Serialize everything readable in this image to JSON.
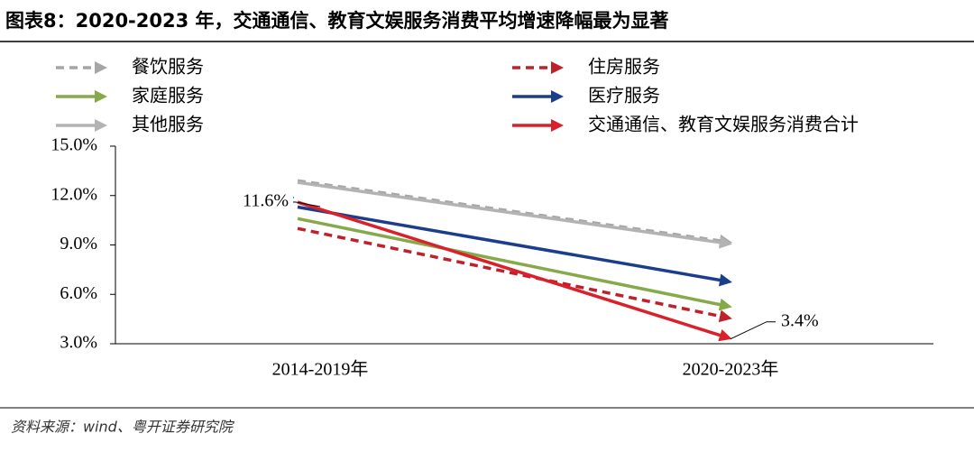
{
  "header": {
    "title": "图表8：2020-2023 年，交通通信、教育文娱服务消费平均增速降幅最为显著"
  },
  "source": "资料来源：wind、粤开证券研究院",
  "chart_data": {
    "type": "line",
    "categories": [
      "2014-2019年",
      "2020-2023年"
    ],
    "ylim": [
      3,
      15
    ],
    "yticks": [
      {
        "value": 3,
        "label": "3.0%"
      },
      {
        "value": 6,
        "label": "6.0%"
      },
      {
        "value": 9,
        "label": "9.0%"
      },
      {
        "value": 12,
        "label": "12.0%"
      },
      {
        "value": 15,
        "label": "15.0%"
      }
    ],
    "series": [
      {
        "name": "餐饮服务",
        "color": "#a6a6a6",
        "dashed": true,
        "values": [
          12.9,
          9.2
        ]
      },
      {
        "name": "住房服务",
        "color": "#c0202a",
        "dashed": true,
        "values": [
          10.0,
          4.6
        ]
      },
      {
        "name": "家庭服务",
        "color": "#86a94a",
        "dashed": false,
        "values": [
          10.6,
          5.3
        ]
      },
      {
        "name": "医疗服务",
        "color": "#1b3e8c",
        "dashed": false,
        "values": [
          11.3,
          6.8
        ]
      },
      {
        "name": "其他服务",
        "color": "#b3b3b3",
        "dashed": false,
        "values": [
          12.8,
          9.1
        ]
      },
      {
        "name": "交通通信、教育文娱服务消费合计",
        "color": "#d9212b",
        "dashed": false,
        "values": [
          11.6,
          3.4
        ],
        "value_labels": [
          "11.6%",
          "3.4%"
        ]
      }
    ]
  }
}
